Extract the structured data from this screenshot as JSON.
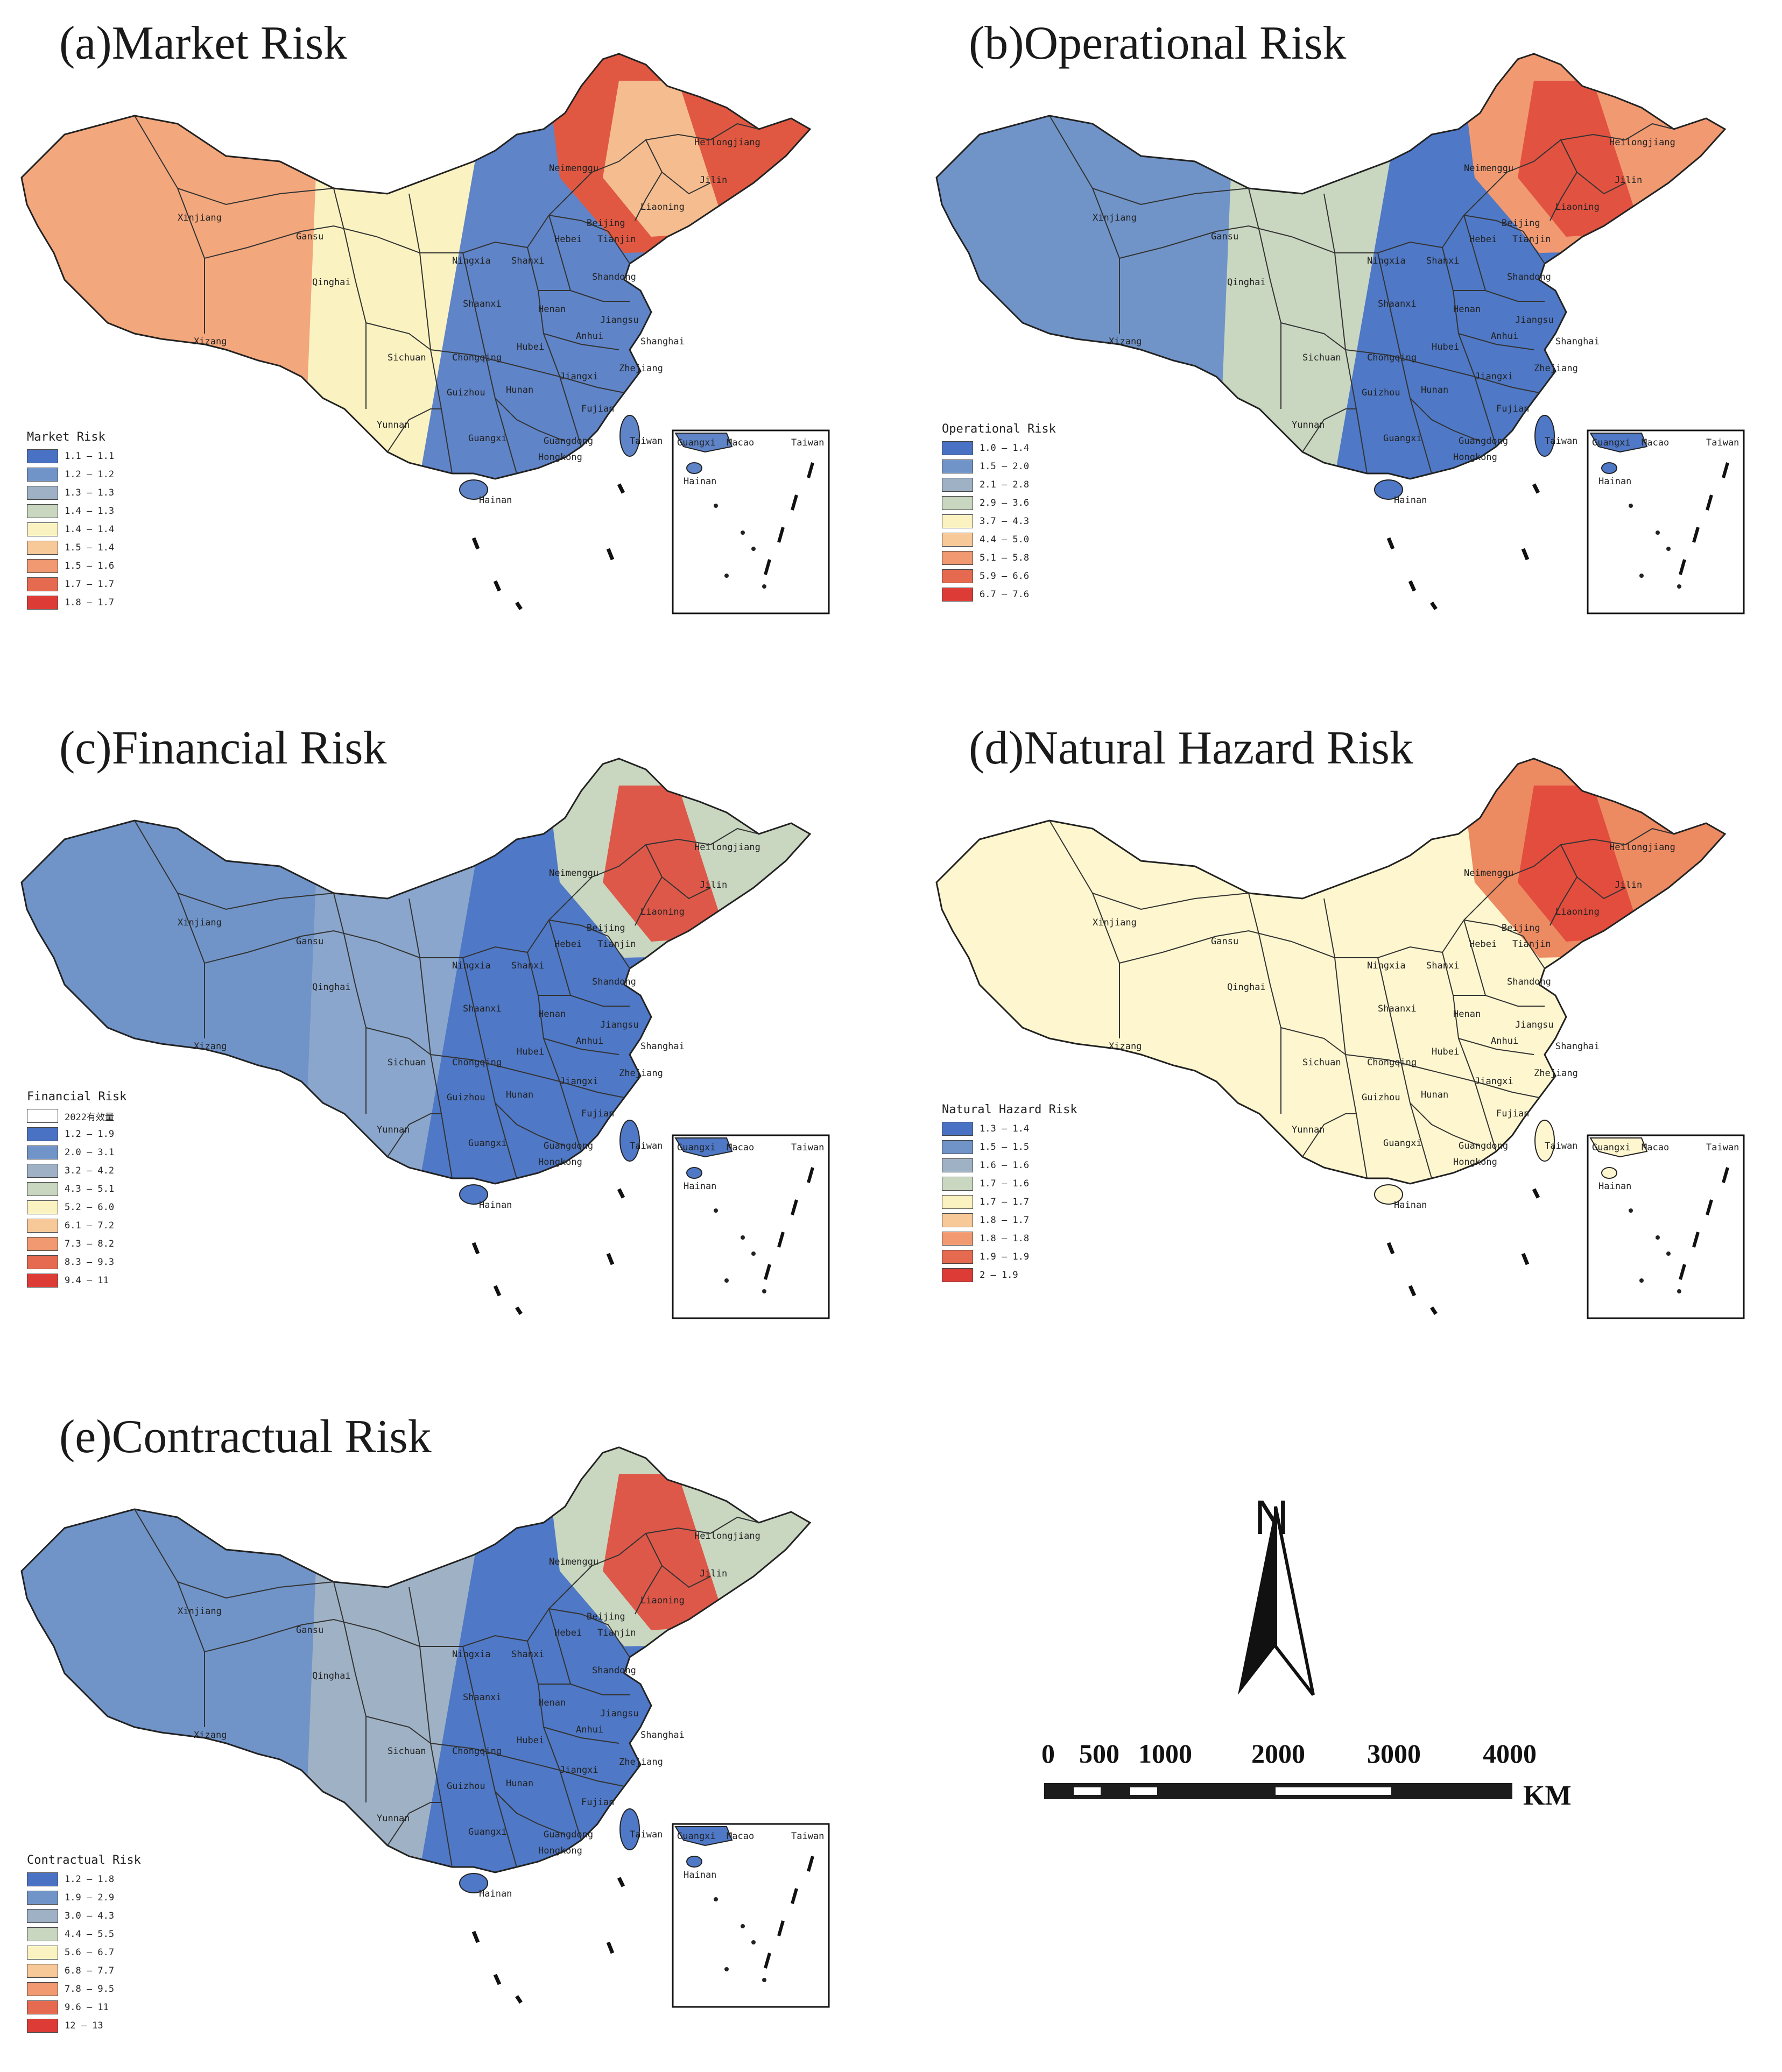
{
  "panels": [
    {
      "id": "a",
      "title": "(a)Market Risk",
      "legend_title": "Market Risk",
      "legend": [
        {
          "label": "1.1 — 1.1",
          "color": "#4a72c4"
        },
        {
          "label": "1.2 — 1.2",
          "color": "#7094c8"
        },
        {
          "label": "1.3 — 1.3",
          "color": "#9fb1c4"
        },
        {
          "label": "1.4 — 1.3",
          "color": "#c9d6c0"
        },
        {
          "label": "1.4 — 1.4",
          "color": "#fbf2c2"
        },
        {
          "label": "1.5 — 1.4",
          "color": "#f7c998"
        },
        {
          "label": "1.5 — 1.6",
          "color": "#f19a72"
        },
        {
          "label": "1.7 — 1.7",
          "color": "#e66a50"
        },
        {
          "label": "1.8 — 1.7",
          "color": "#dd3b35"
        }
      ],
      "colors": {
        "west": "#f3a77c",
        "central": "#fbf2c2",
        "east": "#5f84c8",
        "northeast": "#e05841",
        "belt": "#f7c998"
      }
    },
    {
      "id": "b",
      "title": "(b)Operational Risk",
      "legend_title": "Operational Risk",
      "legend": [
        {
          "label": "1.0 — 1.4",
          "color": "#4a72c4"
        },
        {
          "label": "1.5 — 2.0",
          "color": "#7094c8"
        },
        {
          "label": "2.1 — 2.8",
          "color": "#9fb1c4"
        },
        {
          "label": "2.9 — 3.6",
          "color": "#c9d6c0"
        },
        {
          "label": "3.7 — 4.3",
          "color": "#fbf2c2"
        },
        {
          "label": "4.4 — 5.0",
          "color": "#f7c998"
        },
        {
          "label": "5.1 — 5.8",
          "color": "#f19a72"
        },
        {
          "label": "5.9 — 6.6",
          "color": "#e66a50"
        },
        {
          "label": "6.7 — 7.6",
          "color": "#dd3b35"
        }
      ],
      "colors": {
        "west": "#7094c8",
        "central": "#c9d6c0",
        "east": "#4f78c6",
        "northeast": "#f19a72",
        "belt": "#e04a3c"
      }
    },
    {
      "id": "c",
      "title": "(c)Financial Risk",
      "legend_title": "Financial Risk",
      "legend": [
        {
          "label": "2022有效量",
          "color": "#ffffff"
        },
        {
          "label": "1.2 — 1.9",
          "color": "#4a72c4"
        },
        {
          "label": "2.0 — 3.1",
          "color": "#7094c8"
        },
        {
          "label": "3.2 — 4.2",
          "color": "#9fb1c4"
        },
        {
          "label": "4.3 — 5.1",
          "color": "#c9d6c0"
        },
        {
          "label": "5.2 — 6.0",
          "color": "#fbf2c2"
        },
        {
          "label": "6.1 — 7.2",
          "color": "#f7c998"
        },
        {
          "label": "7.3 — 8.2",
          "color": "#f19a72"
        },
        {
          "label": "8.3 — 9.3",
          "color": "#e66a50"
        },
        {
          "label": "9.4 — 11",
          "color": "#dd3b35"
        }
      ],
      "colors": {
        "west": "#7094c8",
        "central": "#8aa6cc",
        "east": "#4f78c6",
        "northeast": "#c9d6c0",
        "belt": "#e04a3c"
      }
    },
    {
      "id": "d",
      "title": "(d)Natural Hazard Risk",
      "legend_title": "Natural Hazard Risk",
      "legend": [
        {
          "label": "1.3 — 1.4",
          "color": "#4a72c4"
        },
        {
          "label": "1.5 — 1.5",
          "color": "#7094c8"
        },
        {
          "label": "1.6 — 1.6",
          "color": "#9fb1c4"
        },
        {
          "label": "1.7 — 1.6",
          "color": "#c9d6c0"
        },
        {
          "label": "1.7 — 1.7",
          "color": "#fbf2c2"
        },
        {
          "label": "1.8 — 1.7",
          "color": "#f7c998"
        },
        {
          "label": "1.8 — 1.8",
          "color": "#f19a72"
        },
        {
          "label": "1.9 — 1.9",
          "color": "#e66a50"
        },
        {
          "label": "2 — 1.9",
          "color": "#dd3b35"
        }
      ],
      "colors": {
        "west": "#fdf6cf",
        "central": "#fdf6cf",
        "east": "#fdf6cf",
        "northeast": "#ec8a62",
        "belt": "#e2463a"
      }
    },
    {
      "id": "e",
      "title": "(e)Contractual Risk",
      "legend_title": "Contractual Risk",
      "legend": [
        {
          "label": "1.2 — 1.8",
          "color": "#4a72c4"
        },
        {
          "label": "1.9 — 2.9",
          "color": "#7094c8"
        },
        {
          "label": "3.0 — 4.3",
          "color": "#9fb1c4"
        },
        {
          "label": "4.4 — 5.5",
          "color": "#c9d6c0"
        },
        {
          "label": "5.6 — 6.7",
          "color": "#fbf2c2"
        },
        {
          "label": "6.8 — 7.7",
          "color": "#f7c998"
        },
        {
          "label": "7.8 — 9.5",
          "color": "#f19a72"
        },
        {
          "label": "9.6 — 11",
          "color": "#e66a50"
        },
        {
          "label": "12 — 13",
          "color": "#dd3b35"
        }
      ],
      "colors": {
        "west": "#7094c8",
        "central": "#9fb1c4",
        "east": "#4f78c6",
        "northeast": "#c9d6c0",
        "belt": "#e04a3c"
      }
    }
  ],
  "provinces": {
    "xinjiang": "Xinjiang",
    "xizang": "Xizang",
    "qinghai": "Qinghai",
    "gansu": "Gansu",
    "neimenggu": "Neimenggu",
    "heilongjiang": "Heilongjiang",
    "jilin": "Jilin",
    "liaoning": "Liaoning",
    "beijing": "Beijing",
    "tianjin": "Tianjin",
    "hebei": "Hebei",
    "shanxi": "Shanxi",
    "shandong": "Shandong",
    "ningxia": "Ningxia",
    "shaanxi": "Shaanxi",
    "henan": "Henan",
    "jiangsu": "Jiangsu",
    "shanghai": "Shanghai",
    "anhui": "Anhui",
    "hubei": "Hubei",
    "sichuan": "Sichuan",
    "chongqing": "Chongqing",
    "zhejiang": "Zhejiang",
    "guizhou": "Guizhou",
    "hunan": "Hunan",
    "jiangxi": "Jiangxi",
    "fujian": "Fujian",
    "yunnan": "Yunnan",
    "guangxi": "Guangxi",
    "guangdong": "Guangdong",
    "hongkong": "Hongkong",
    "taiwan": "Taiwan",
    "hainan": "Hainan",
    "macao": "Macao"
  },
  "north_label": "N",
  "scale": {
    "ticks": [
      "0",
      "500",
      "1000",
      "2000",
      "3000",
      "4000"
    ],
    "unit": "KM"
  }
}
